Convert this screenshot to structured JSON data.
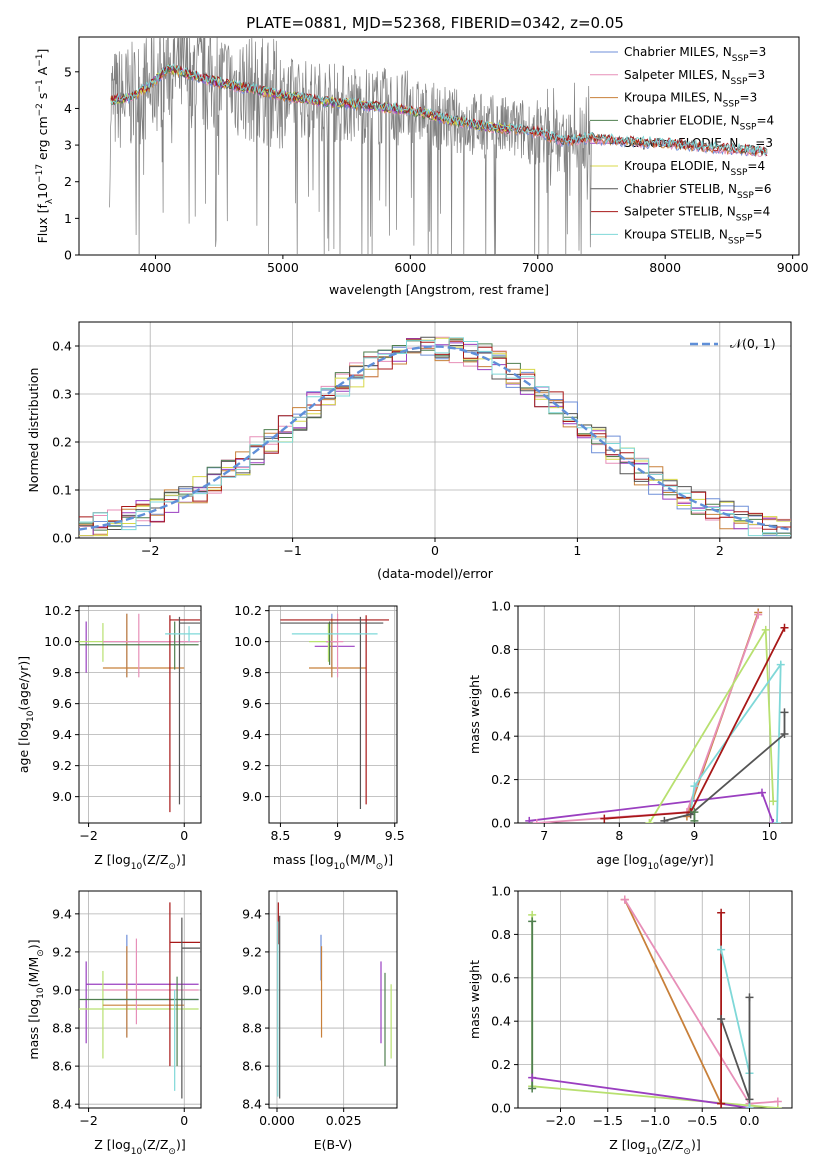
{
  "title": "PLATE=0881, MJD=52368, FIBERID=0342, z=0.05",
  "colors": {
    "chabrier_miles": "#6f8fd8",
    "salpeter_miles": "#e78fb8",
    "kroupa_miles": "#c8803a",
    "chabrier_elodie": "#4f7f4f",
    "salpeter_elodie": "#9a3fc0",
    "kroupa_elodie": "#d8d84a",
    "chabrier_stelib": "#555555",
    "salpeter_stelib": "#a81818",
    "kroupa_stelib": "#7fd8d8",
    "lime": "#b8e070",
    "data": "#808080"
  },
  "chart_data": [
    {
      "id": "spectrum",
      "type": "line",
      "xlabel": "wavelength [Angstrom, rest frame]",
      "ylabel_parts": [
        "Flux [f",
        "λ",
        "10",
        "−17",
        " erg cm",
        "−2",
        " s",
        "−1",
        " A",
        "−1",
        "]"
      ],
      "xlim": [
        3400,
        9050
      ],
      "ylim": [
        0,
        5.95
      ],
      "xticks": [
        4000,
        5000,
        6000,
        7000,
        8000,
        9000
      ],
      "yticks": [
        0,
        1,
        2,
        3,
        4,
        5
      ],
      "grid": false,
      "legend": "top-right",
      "series": [
        {
          "key": "chabrier_miles",
          "label": "Chabrier MILES, N",
          "sub": "SSP",
          "tail": "=3"
        },
        {
          "key": "salpeter_miles",
          "label": "Salpeter MILES, N",
          "sub": "SSP",
          "tail": "=3"
        },
        {
          "key": "kroupa_miles",
          "label": "Kroupa MILES, N",
          "sub": "SSP",
          "tail": "=3"
        },
        {
          "key": "chabrier_elodie",
          "label": "Chabrier ELODIE, N",
          "sub": "SSP",
          "tail": "=4"
        },
        {
          "key": "salpeter_elodie",
          "label": "Salpeter ELODIE, N",
          "sub": "SSP",
          "tail": "=3"
        },
        {
          "key": "kroupa_elodie",
          "label": "Kroupa ELODIE, N",
          "sub": "SSP",
          "tail": "=4"
        },
        {
          "key": "chabrier_stelib",
          "label": "Chabrier STELIB, N",
          "sub": "SSP",
          "tail": "=6"
        },
        {
          "key": "salpeter_stelib",
          "label": "Salpeter STELIB, N",
          "sub": "SSP",
          "tail": "=4"
        },
        {
          "key": "kroupa_stelib",
          "label": "Kroupa STELIB, N",
          "sub": "SSP",
          "tail": "=5"
        }
      ],
      "model_continuum": [
        [
          3650,
          4.2
        ],
        [
          3800,
          4.3
        ],
        [
          3950,
          4.6
        ],
        [
          4100,
          5.1
        ],
        [
          4300,
          4.9
        ],
        [
          4500,
          4.7
        ],
        [
          4800,
          4.5
        ],
        [
          5000,
          4.35
        ],
        [
          5300,
          4.2
        ],
        [
          5600,
          4.1
        ],
        [
          6000,
          3.95
        ],
        [
          6300,
          3.7
        ],
        [
          6600,
          3.5
        ],
        [
          7000,
          3.35
        ],
        [
          7200,
          3.1
        ],
        [
          7400,
          3.2
        ],
        [
          7700,
          3.1
        ],
        [
          8000,
          3.05
        ],
        [
          8300,
          2.95
        ],
        [
          8700,
          2.85
        ],
        [
          8800,
          2.8
        ]
      ]
    },
    {
      "id": "residuals",
      "type": "line",
      "xlabel": "(data-model)/error",
      "ylabel": "Normed distribution",
      "xlim": [
        -2.5,
        2.5
      ],
      "ylim": [
        0,
        0.45
      ],
      "xticks": [
        -2,
        -1,
        0,
        1,
        2
      ],
      "yticks": [
        0.0,
        0.1,
        0.2,
        0.3,
        0.4
      ],
      "grid": true,
      "legend": "top-right",
      "reference": {
        "label": "𝒩(0, 1)",
        "mean": 0,
        "sigma": 1
      }
    },
    {
      "id": "age_vs_Z",
      "type": "scatter",
      "xlabel_parts": [
        "Z [log",
        "10",
        "(Z/Z",
        "⊙",
        ")]"
      ],
      "ylabel_parts": [
        "age  [log",
        "10",
        "(age/yr)]"
      ],
      "xlim": [
        -2.2,
        0.35
      ],
      "ylim": [
        8.83,
        10.23
      ],
      "xticks": [
        -2,
        0
      ],
      "yticks": [
        9.0,
        9.2,
        9.4,
        9.6,
        9.8,
        10.0,
        10.2
      ],
      "grid": true,
      "points": [
        {
          "c": "salpeter_elodie",
          "x": -2.05,
          "y": 9.97,
          "xe": [
            -2.05,
            -2.05
          ],
          "ye": [
            9.8,
            10.13
          ]
        },
        {
          "c": "lime",
          "x": -1.7,
          "y": 10.0,
          "xe": [
            -2.2,
            0.3
          ],
          "ye": [
            9.87,
            10.12
          ]
        },
        {
          "c": "chabrier_miles",
          "x": -1.2,
          "y": 10.0,
          "xe": [
            -1.7,
            0.3
          ],
          "ye": [
            9.77,
            10.18
          ]
        },
        {
          "c": "kroupa_miles",
          "x": -1.2,
          "y": 9.83,
          "xe": [
            -1.7,
            0.0
          ],
          "ye": [
            9.77,
            10.18
          ]
        },
        {
          "c": "salpeter_miles",
          "x": -0.95,
          "y": 10.0,
          "xe": [
            -1.7,
            0.3
          ],
          "ye": [
            9.77,
            10.18
          ]
        },
        {
          "c": "chabrier_elodie",
          "x": -0.2,
          "y": 9.98,
          "xe": [
            -2.2,
            0.3
          ],
          "ye": [
            9.82,
            10.13
          ]
        },
        {
          "c": "salpeter_stelib",
          "x": -0.3,
          "y": 10.14,
          "xe": [
            -0.3,
            0.33
          ],
          "ye": [
            8.9,
            10.17
          ]
        },
        {
          "c": "chabrier_stelib",
          "x": -0.1,
          "y": 10.12,
          "xe": [
            -0.1,
            0.33
          ],
          "ye": [
            8.95,
            10.16
          ]
        },
        {
          "c": "kroupa_stelib",
          "x": 0.1,
          "y": 10.05,
          "xe": [
            -0.4,
            0.33
          ],
          "ye": [
            10.0,
            10.1
          ]
        }
      ]
    },
    {
      "id": "age_vs_mass",
      "type": "scatter",
      "xlabel_parts": [
        "mass [log",
        "10",
        "(M/M",
        "⊙",
        ")]"
      ],
      "ylabel": "",
      "xlim": [
        8.4,
        9.52
      ],
      "ylim": [
        8.83,
        10.23
      ],
      "xticks": [
        8.5,
        9.0,
        9.5
      ],
      "yticks": [
        9.0,
        9.2,
        9.4,
        9.6,
        9.8,
        10.0,
        10.2
      ],
      "grid": true,
      "points": [
        {
          "c": "salpeter_elodie",
          "x": 9.05,
          "y": 9.97,
          "xe": [
            8.8,
            9.15
          ],
          "ye": [
            9.97,
            9.97
          ]
        },
        {
          "c": "lime",
          "x": 8.92,
          "y": 10.0,
          "xe": [
            8.75,
            9.0
          ],
          "ye": [
            9.87,
            10.12
          ]
        },
        {
          "c": "chabrier_miles",
          "x": 8.95,
          "y": 10.0,
          "xe": [
            8.9,
            9.0
          ],
          "ye": [
            9.77,
            10.18
          ]
        },
        {
          "c": "kroupa_miles",
          "x": 8.95,
          "y": 9.83,
          "xe": [
            8.75,
            9.25
          ],
          "ye": [
            9.77,
            10.15
          ]
        },
        {
          "c": "salpeter_miles",
          "x": 9.0,
          "y": 10.0,
          "xe": [
            8.9,
            9.05
          ],
          "ye": [
            9.77,
            10.18
          ]
        },
        {
          "c": "chabrier_elodie",
          "x": 8.93,
          "y": 9.98,
          "xe": [
            8.93,
            8.93
          ],
          "ye": [
            9.85,
            10.13
          ]
        },
        {
          "c": "salpeter_stelib",
          "x": 9.25,
          "y": 10.14,
          "xe": [
            8.5,
            9.45
          ],
          "ye": [
            8.95,
            10.17
          ]
        },
        {
          "c": "chabrier_stelib",
          "x": 9.2,
          "y": 10.12,
          "xe": [
            8.5,
            9.4
          ],
          "ye": [
            8.92,
            10.16
          ]
        },
        {
          "c": "kroupa_stelib",
          "x": 9.0,
          "y": 10.05,
          "xe": [
            8.6,
            9.35
          ],
          "ye": [
            10.05,
            10.05
          ]
        }
      ]
    },
    {
      "id": "mass_weight_vs_age",
      "type": "line",
      "xlabel_parts": [
        "age  [log",
        "10",
        "(age/yr)]"
      ],
      "ylabel": "mass weight",
      "xlim": [
        6.65,
        10.3
      ],
      "ylim": [
        0,
        1.0
      ],
      "xticks": [
        7,
        8,
        9,
        10
      ],
      "yticks": [
        0.0,
        0.2,
        0.4,
        0.6,
        0.8,
        1.0
      ],
      "grid": true,
      "series": [
        {
          "c": "salpeter_elodie",
          "pts": [
            [
              6.8,
              0.01
            ],
            [
              9.9,
              0.14
            ],
            [
              10.05,
              0.0
            ]
          ]
        },
        {
          "c": "kroupa_miles",
          "pts": [
            [
              8.9,
              0.03
            ],
            [
              9.85,
              0.97
            ]
          ]
        },
        {
          "c": "salpeter_miles",
          "pts": [
            [
              6.9,
              0.0
            ],
            [
              8.9,
              0.05
            ],
            [
              9.85,
              0.96
            ]
          ]
        },
        {
          "c": "lime",
          "pts": [
            [
              8.4,
              0.0
            ],
            [
              9.95,
              0.89
            ],
            [
              10.05,
              0.1
            ]
          ]
        },
        {
          "c": "kroupa_stelib",
          "pts": [
            [
              8.95,
              0.05
            ],
            [
              9.0,
              0.17
            ],
            [
              10.15,
              0.73
            ],
            [
              10.1,
              0.0
            ]
          ]
        },
        {
          "c": "salpeter_stelib",
          "pts": [
            [
              7.8,
              0.02
            ],
            [
              8.95,
              0.05
            ],
            [
              10.2,
              0.9
            ]
          ]
        },
        {
          "c": "chabrier_stelib",
          "pts": [
            [
              8.6,
              0.01
            ],
            [
              8.95,
              0.04
            ],
            [
              10.2,
              0.41
            ],
            [
              10.2,
              0.51
            ]
          ]
        },
        {
          "c": "chabrier_elodie",
          "pts": [
            [
              9.0,
              0.01
            ],
            [
              9.0,
              0.05
            ]
          ]
        }
      ]
    },
    {
      "id": "mass_vs_Z",
      "type": "scatter",
      "xlabel_parts": [
        "Z [log",
        "10",
        "(Z/Z",
        "⊙",
        ")]"
      ],
      "ylabel_parts": [
        "mass [log",
        "10",
        "(M/M",
        "⊙",
        ")]"
      ],
      "xlim": [
        -2.2,
        0.35
      ],
      "ylim": [
        8.38,
        9.52
      ],
      "xticks": [
        -2,
        0
      ],
      "yticks": [
        8.4,
        8.6,
        8.8,
        9.0,
        9.2,
        9.4
      ],
      "grid": true,
      "points": [
        {
          "c": "salpeter_elodie",
          "x": -2.05,
          "y": 9.03,
          "xe": [
            -2.05,
            0.3
          ],
          "ye": [
            8.72,
            9.15
          ]
        },
        {
          "c": "lime",
          "x": -1.7,
          "y": 8.9,
          "xe": [
            -2.2,
            0.3
          ],
          "ye": [
            8.64,
            9.1
          ]
        },
        {
          "c": "chabrier_miles",
          "x": -1.2,
          "y": 8.95,
          "xe": [
            -1.7,
            0.3
          ],
          "ye": [
            8.75,
            9.29
          ]
        },
        {
          "c": "kroupa_miles",
          "x": -1.2,
          "y": 8.92,
          "xe": [
            -1.7,
            0.0
          ],
          "ye": [
            8.75,
            9.23
          ]
        },
        {
          "c": "salpeter_miles",
          "x": -1.0,
          "y": 9.0,
          "xe": [
            -1.7,
            0.3
          ],
          "ye": [
            8.82,
            9.27
          ]
        },
        {
          "c": "chabrier_elodie",
          "x": -0.15,
          "y": 8.95,
          "xe": [
            -2.2,
            0.3
          ],
          "ye": [
            8.6,
            9.07
          ]
        },
        {
          "c": "salpeter_stelib",
          "x": -0.3,
          "y": 9.25,
          "xe": [
            -0.3,
            0.33
          ],
          "ye": [
            8.6,
            9.46
          ]
        },
        {
          "c": "chabrier_stelib",
          "x": -0.05,
          "y": 9.22,
          "xe": [
            -0.05,
            0.33
          ],
          "ye": [
            8.43,
            9.38
          ]
        },
        {
          "c": "kroupa_stelib",
          "x": -0.2,
          "y": 8.95,
          "xe": [
            -0.2,
            -0.2
          ],
          "ye": [
            8.47,
            9.0
          ]
        }
      ]
    },
    {
      "id": "mass_vs_EBV",
      "type": "scatter",
      "xlabel": "E(B-V)",
      "ylabel": "",
      "xlim": [
        -0.003,
        0.045
      ],
      "ylim": [
        8.38,
        9.52
      ],
      "xticks": [
        0.0,
        0.025
      ],
      "xticklabels": [
        "0.000",
        "0.025"
      ],
      "yticks": [
        8.4,
        8.6,
        8.8,
        9.0,
        9.2,
        9.4
      ],
      "grid": true,
      "points": [
        {
          "c": "salpeter_stelib",
          "x": 0.0005,
          "ye": [
            9.24,
            9.46
          ]
        },
        {
          "c": "kroupa_stelib",
          "x": 0.0003,
          "ye": [
            8.44,
            9.36
          ]
        },
        {
          "c": "chabrier_stelib",
          "x": 0.001,
          "ye": [
            8.43,
            9.39
          ]
        },
        {
          "c": "chabrier_miles",
          "x": 0.0165,
          "ye": [
            9.05,
            9.29
          ]
        },
        {
          "c": "kroupa_miles",
          "x": 0.0167,
          "ye": [
            8.75,
            9.23
          ]
        },
        {
          "c": "salpeter_elodie",
          "x": 0.039,
          "ye": [
            8.72,
            9.15
          ]
        },
        {
          "c": "chabrier_elodie",
          "x": 0.0405,
          "ye": [
            8.6,
            9.09
          ]
        },
        {
          "c": "lime",
          "x": 0.0428,
          "ye": [
            8.64,
            9.03
          ]
        }
      ]
    },
    {
      "id": "mass_weight_vs_Z",
      "type": "line",
      "xlabel_parts": [
        "Z [log",
        "10",
        "(Z/Z",
        "⊙",
        ")]"
      ],
      "ylabel": "mass weight",
      "xlim": [
        -2.45,
        0.45
      ],
      "ylim": [
        0,
        1.0
      ],
      "xticks": [
        -2.0,
        -1.5,
        -1.0,
        -0.5,
        0.0
      ],
      "xticklabels": [
        "−2.0",
        "−1.5",
        "−1.0",
        "−0.5",
        "0.0"
      ],
      "yticks": [
        0.0,
        0.2,
        0.4,
        0.6,
        0.8,
        1.0
      ],
      "grid": true,
      "series": [
        {
          "c": "lime",
          "pts": [
            [
              -2.3,
              0.89
            ],
            [
              -2.3,
              0.1
            ],
            [
              0.3,
              0.0
            ]
          ]
        },
        {
          "c": "chabrier_elodie",
          "pts": [
            [
              -2.3,
              0.86
            ],
            [
              -2.3,
              0.09
            ]
          ]
        },
        {
          "c": "salpeter_elodie",
          "pts": [
            [
              -2.3,
              0.14
            ],
            [
              -0.3,
              0.02
            ],
            [
              0.0,
              0.0
            ]
          ]
        },
        {
          "c": "kroupa_miles",
          "pts": [
            [
              -1.32,
              0.96
            ],
            [
              -0.3,
              0.02
            ]
          ]
        },
        {
          "c": "salpeter_miles",
          "pts": [
            [
              -1.32,
              0.96
            ],
            [
              0.0,
              0.02
            ],
            [
              0.3,
              0.03
            ]
          ]
        },
        {
          "c": "salpeter_stelib",
          "pts": [
            [
              -0.3,
              0.9
            ],
            [
              -0.3,
              0.02
            ]
          ]
        },
        {
          "c": "kroupa_stelib",
          "pts": [
            [
              -0.3,
              0.73
            ],
            [
              0.0,
              0.16
            ],
            [
              0.0,
              0.0
            ]
          ]
        },
        {
          "c": "chabrier_stelib",
          "pts": [
            [
              -0.3,
              0.41
            ],
            [
              0.0,
              0.04
            ],
            [
              0.0,
              0.51
            ]
          ]
        }
      ]
    }
  ]
}
